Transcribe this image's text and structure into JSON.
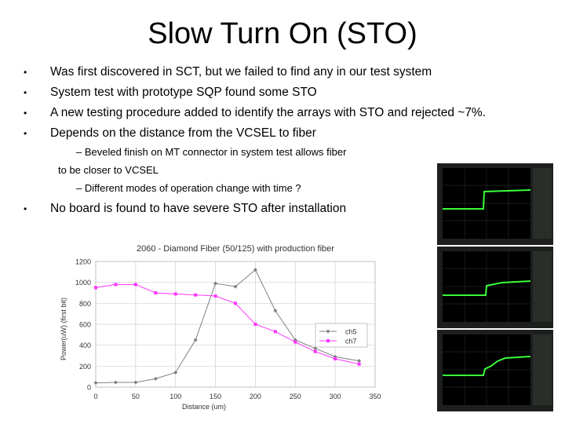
{
  "slide": {
    "title": "Slow Turn On (STO)",
    "bullets": [
      "Was first discovered in SCT, but we failed to find any in our test system",
      "System test with prototype SQP found some STO",
      "A new testing procedure added to identify the arrays with STO and rejected ~7%.",
      "Depends on the distance from the VCSEL to fiber"
    ],
    "sub_bullets": {
      "line1": "–  Beveled finish on MT connector in system test allows fiber",
      "line1_cont": "to be closer to VCSEL",
      "line2": "–  Different modes of operation change with time ?"
    },
    "last_bullet": "No board is found to have severe STO after installation",
    "bullet_glyph": "•"
  },
  "chart_data": {
    "type": "line",
    "title": "2060 - Diamond Fiber (50/125) with production fiber",
    "xlabel": "Distance (um)",
    "ylabel": "Power(uW) (first bit)",
    "xlim": [
      0,
      350
    ],
    "ylim": [
      0,
      1200
    ],
    "xticks": [
      0,
      50,
      100,
      150,
      200,
      250,
      300,
      350
    ],
    "yticks": [
      0,
      200,
      400,
      600,
      800,
      1000,
      1200
    ],
    "legend_position": "lower-right",
    "series": [
      {
        "name": "ch5",
        "color": "#808080",
        "marker": "diamond",
        "x": [
          0,
          25,
          50,
          75,
          100,
          125,
          150,
          175,
          200,
          225,
          250,
          275,
          300,
          330
        ],
        "y": [
          40,
          45,
          45,
          80,
          140,
          450,
          990,
          960,
          1120,
          730,
          450,
          370,
          290,
          250
        ]
      },
      {
        "name": "ch7",
        "color": "#ff33ff",
        "marker": "square",
        "x": [
          0,
          25,
          50,
          75,
          100,
          125,
          150,
          175,
          200,
          225,
          250,
          275,
          300,
          330
        ],
        "y": [
          950,
          980,
          980,
          900,
          890,
          880,
          870,
          800,
          600,
          530,
          430,
          340,
          270,
          220
        ]
      }
    ]
  },
  "oscilloscope_captures": {
    "count": 3,
    "trace_color": "#39ff39",
    "screen_color": "#000000"
  }
}
